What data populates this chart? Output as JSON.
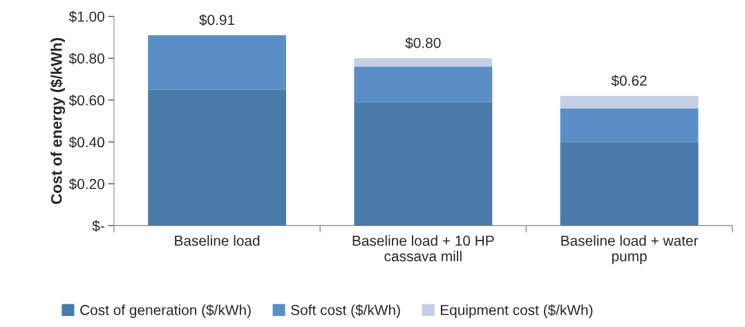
{
  "chart_data": {
    "type": "bar",
    "stacked": true,
    "ylabel": "Cost of energy ($/kWh)",
    "categories": [
      "Baseline load",
      "Baseline load + 10 HP\ncassava mill",
      "Baseline load + water\npump"
    ],
    "series": [
      {
        "name": "Cost of generation ($/kWh)",
        "color": "#4a7aa7",
        "values": [
          0.65,
          0.59,
          0.4
        ]
      },
      {
        "name": "Soft cost ($/kWh)",
        "color": "#5b8ec4",
        "values": [
          0.26,
          0.17,
          0.16
        ]
      },
      {
        "name": "Equipment cost ($/kWh)",
        "color": "#c5cfe3",
        "values": [
          0,
          0.04,
          0.06
        ]
      }
    ],
    "totals": [
      "$0.91",
      "$0.80",
      "$0.62"
    ],
    "ylim": [
      0,
      1.0
    ],
    "yticks": [
      {
        "value": 0,
        "label": "$-"
      },
      {
        "value": 0.2,
        "label": "$0.20"
      },
      {
        "value": 0.4,
        "label": "$0.40"
      },
      {
        "value": 0.6,
        "label": "$0.60"
      },
      {
        "value": 0.8,
        "label": "$0.80"
      },
      {
        "value": 1.0,
        "label": "$1.00"
      }
    ],
    "grid": false,
    "legend": "bottom"
  }
}
